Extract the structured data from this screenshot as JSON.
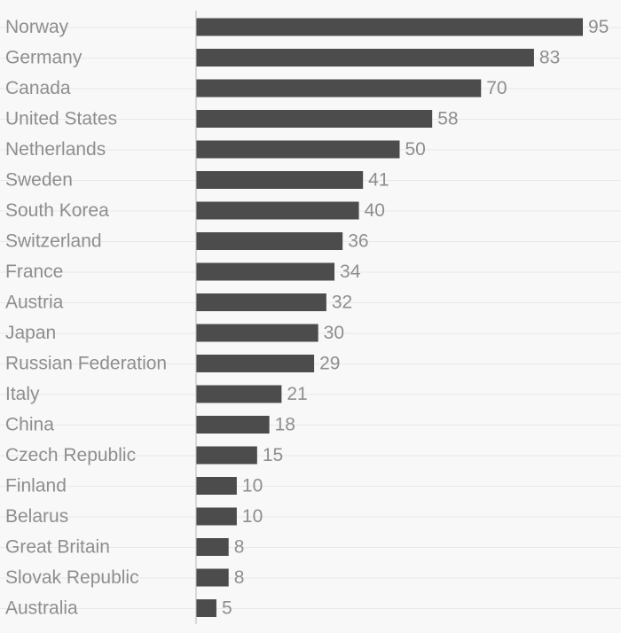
{
  "chart_data": {
    "type": "bar",
    "orientation": "horizontal",
    "categories": [
      "Norway",
      "Germany",
      "Canada",
      "United States",
      "Netherlands",
      "Sweden",
      "South Korea",
      "Switzerland",
      "France",
      "Austria",
      "Japan",
      "Russian Federation",
      "Italy",
      "China",
      "Czech Republic",
      "Finland",
      "Belarus",
      "Great Britain",
      "Slovak Republic",
      "Australia"
    ],
    "values": [
      95,
      83,
      70,
      58,
      50,
      41,
      40,
      36,
      34,
      32,
      30,
      29,
      21,
      18,
      15,
      10,
      10,
      8,
      8,
      5
    ],
    "title": "",
    "xlabel": "",
    "ylabel": "",
    "xlim": [
      0,
      95
    ],
    "grid": true,
    "legend": "none",
    "colors": {
      "bar": "#4c4c4c",
      "label": "#8e8e8e",
      "grid": "#e9e9e9",
      "axis": "#b8b8b8",
      "background": "#f8f8f8"
    }
  }
}
